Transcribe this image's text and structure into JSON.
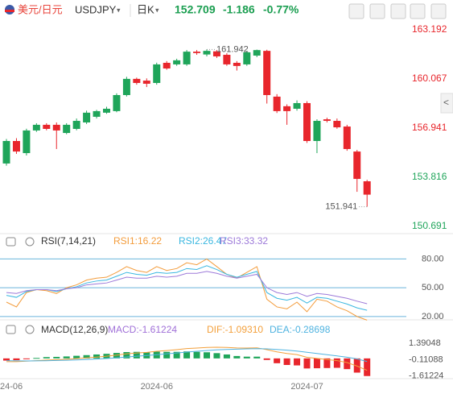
{
  "header": {
    "pair": "美元/日元",
    "symbol": "USDJPY",
    "period": "日K",
    "change": "-1.186",
    "change_pct": "-0.77%"
  },
  "chart_data": [
    {
      "type": "candlestick",
      "categories": [
        "24-06",
        null,
        null,
        null,
        null,
        null,
        null,
        null,
        null,
        null,
        null,
        null,
        null,
        null,
        null,
        "2024-06",
        null,
        null,
        null,
        null,
        null,
        null,
        null,
        null,
        null,
        null,
        null,
        null,
        null,
        null,
        "2024-07",
        null,
        null,
        null,
        null,
        null,
        null
      ],
      "ohlc": [
        [
          154.69,
          156.25,
          154.55,
          156.12
        ],
        [
          156.12,
          156.3,
          155.3,
          155.45
        ],
        [
          155.35,
          156.9,
          155.2,
          156.79
        ],
        [
          156.79,
          157.25,
          156.7,
          157.15
        ],
        [
          157.15,
          157.25,
          156.8,
          156.89
        ],
        [
          157.15,
          157.3,
          155.61,
          156.79
        ],
        [
          156.63,
          157.25,
          156.55,
          157.15
        ],
        [
          156.89,
          157.55,
          156.8,
          157.4
        ],
        [
          157.3,
          158.05,
          157.2,
          157.92
        ],
        [
          157.66,
          158.1,
          157.55,
          158.02
        ],
        [
          157.92,
          158.3,
          157.85,
          158.17
        ],
        [
          158.02,
          159.15,
          157.95,
          159.04
        ],
        [
          159.04,
          160.2,
          158.95,
          160.07
        ],
        [
          160.07,
          160.15,
          159.7,
          159.81
        ],
        [
          159.96,
          160.1,
          159.55,
          159.76
        ],
        [
          159.81,
          161.1,
          159.7,
          160.99
        ],
        [
          161.09,
          161.2,
          160.65,
          160.73
        ],
        [
          160.99,
          161.35,
          160.9,
          161.25
        ],
        [
          160.99,
          161.9,
          160.9,
          161.8
        ],
        [
          161.8,
          161.9,
          161.6,
          161.71
        ],
        [
          161.62,
          161.942,
          161.5,
          161.85
        ],
        [
          161.82,
          161.9,
          161.4,
          161.5
        ],
        [
          161.6,
          161.7,
          160.9,
          160.99
        ],
        [
          161.09,
          161.2,
          160.6,
          160.89
        ],
        [
          160.99,
          161.85,
          160.9,
          161.76
        ],
        [
          161.55,
          161.93,
          161.45,
          161.9
        ],
        [
          161.85,
          161.92,
          158.5,
          159.04
        ],
        [
          158.94,
          159.1,
          157.9,
          158.02
        ],
        [
          158.33,
          158.45,
          157.15,
          158.02
        ],
        [
          158.17,
          158.7,
          158.05,
          158.53
        ],
        [
          158.53,
          158.65,
          156.0,
          156.12
        ],
        [
          156.12,
          157.5,
          155.35,
          157.4
        ],
        [
          157.5,
          157.6,
          157.3,
          157.4
        ],
        [
          157.4,
          157.55,
          156.9,
          156.99
        ],
        [
          157.04,
          157.15,
          155.5,
          155.61
        ],
        [
          155.45,
          155.55,
          152.89,
          153.71
        ],
        [
          153.56,
          153.65,
          151.941,
          152.709
        ]
      ],
      "up_color": "#1fa55a",
      "down_color": "#e8262c",
      "ylim": [
        150.23,
        163.65
      ],
      "yticks": [
        150.691,
        153.816,
        156.941,
        160.067,
        163.192
      ],
      "ytick_colors": [
        "#1fa55a",
        "#1fa55a",
        "#e8262c",
        "#e8262c",
        "#e8262c"
      ]
    },
    {
      "type": "line",
      "title": "RSI(7,14,21)",
      "series": [
        {
          "name": "RSI1:16.22",
          "color": "#f39c3c",
          "values": [
            35,
            30,
            45,
            48,
            47,
            44,
            50,
            53,
            58,
            60,
            61,
            66,
            72,
            68,
            66,
            72,
            68,
            70,
            76,
            74,
            80,
            72,
            64,
            60,
            66,
            72,
            38,
            30,
            28,
            35,
            25,
            38,
            36,
            30,
            26,
            20,
            16.22
          ]
        },
        {
          "name": "RSI2:26.47",
          "color": "#3ab7e0",
          "values": [
            42,
            40,
            46,
            48,
            48,
            46,
            49,
            51,
            55,
            57,
            58,
            62,
            66,
            64,
            63,
            66,
            65,
            66,
            70,
            69,
            73,
            69,
            64,
            61,
            64,
            67,
            45,
            39,
            37,
            40,
            34,
            40,
            39,
            36,
            33,
            29,
            26.47
          ]
        },
        {
          "name": "RSI3:33.32",
          "color": "#9d7ad9",
          "values": [
            45,
            44,
            47,
            48,
            48,
            47,
            49,
            50,
            53,
            54,
            55,
            58,
            61,
            60,
            60,
            62,
            61,
            62,
            65,
            65,
            67,
            65,
            62,
            60,
            62,
            64,
            50,
            45,
            43,
            45,
            41,
            44,
            43,
            41,
            39,
            36,
            33.32
          ]
        }
      ],
      "ylim": [
        14,
        98
      ],
      "yticks": [
        {
          "value": 20,
          "label": "20.00"
        },
        {
          "value": 50,
          "label": "50.00"
        },
        {
          "value": 80,
          "label": "80.00"
        }
      ],
      "grid": true,
      "grid_color": "#6ab4dc"
    },
    {
      "type": "macd",
      "title": "MACD(12,26,9)",
      "series": [
        {
          "name": "MACD:-1.61224",
          "color": "#a070d8",
          "style": "bar",
          "values": [
            -0.2,
            -0.16,
            -0.04,
            0.04,
            0.12,
            0.14,
            0.18,
            0.24,
            0.3,
            0.36,
            0.42,
            0.5,
            0.58,
            0.6,
            0.56,
            0.62,
            0.6,
            0.6,
            0.64,
            0.6,
            0.56,
            0.48,
            0.36,
            0.22,
            0.16,
            0.16,
            -0.14,
            -0.44,
            -0.6,
            -0.64,
            -0.92,
            -0.9,
            -0.88,
            -0.86,
            -0.98,
            -1.3,
            -1.61224
          ]
        },
        {
          "name": "DIF:-1.09310",
          "color": "#f3a03c",
          "style": "line",
          "values": [
            -0.3,
            -0.3,
            -0.25,
            -0.2,
            -0.15,
            -0.12,
            -0.08,
            -0.02,
            0.05,
            0.12,
            0.2,
            0.3,
            0.42,
            0.5,
            0.55,
            0.65,
            0.72,
            0.8,
            0.9,
            0.95,
            1.0,
            1.02,
            1.0,
            0.96,
            0.95,
            0.97,
            0.8,
            0.6,
            0.45,
            0.35,
            0.1,
            0.0,
            -0.1,
            -0.2,
            -0.38,
            -0.7,
            -1.0931
          ]
        },
        {
          "name": "DEA:-0.28698",
          "color": "#4fb3e0",
          "style": "line",
          "values": [
            -0.2,
            -0.22,
            -0.23,
            -0.22,
            -0.21,
            -0.19,
            -0.17,
            -0.14,
            -0.1,
            -0.06,
            -0.01,
            0.05,
            0.13,
            0.2,
            0.27,
            0.34,
            0.42,
            0.5,
            0.58,
            0.65,
            0.72,
            0.78,
            0.82,
            0.85,
            0.87,
            0.89,
            0.87,
            0.82,
            0.75,
            0.67,
            0.56,
            0.45,
            0.34,
            0.23,
            0.11,
            -0.05,
            -0.28698
          ]
        }
      ],
      "up_color": "#1fa55a",
      "down_color": "#e8262c",
      "ylim": [
        -2.0,
        2.2
      ],
      "yticks": [
        -1.61224,
        -0.11088,
        1.39048
      ]
    }
  ]
}
